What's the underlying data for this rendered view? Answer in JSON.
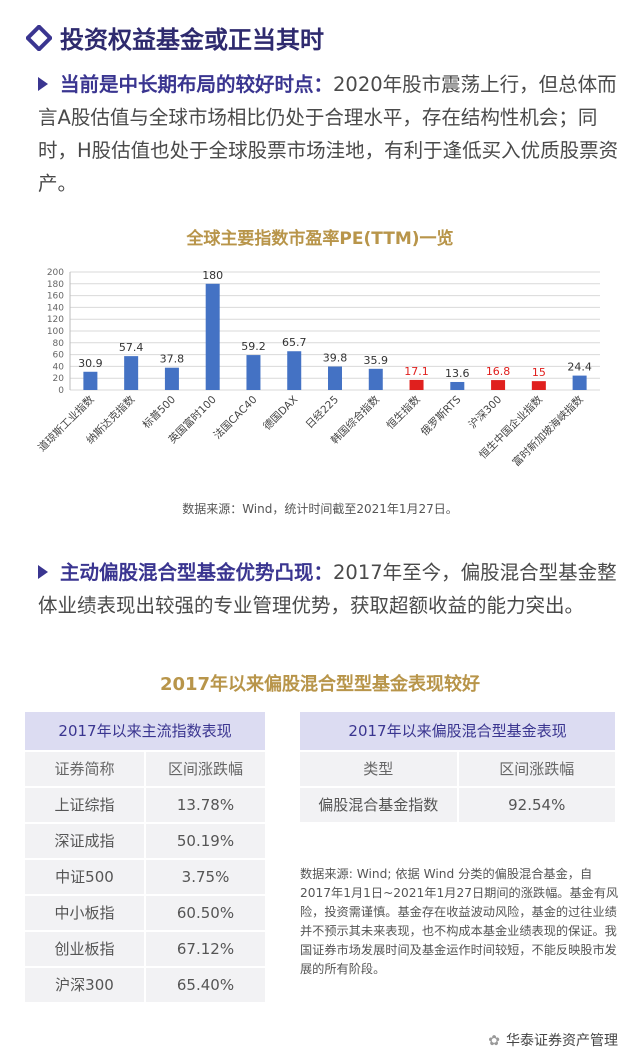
{
  "title": "投资权益基金或正当其时",
  "paragraphs": [
    {
      "lead": "当前是中长期布局的较好时点：",
      "text": "2020年股市震荡上行，但总体而言A股估值与全球市场相比仍处于合理水平，存在结构性机会；同时，H股估值也处于全球股票市场洼地，有利于逢低买入优质股票资产。"
    },
    {
      "lead": "主动偏股混合型基金优势凸现：",
      "text": "2017年至今，偏股混合型基金整体业绩表现出较强的专业管理优势，获取超额收益的能力突出。"
    }
  ],
  "chart_data": {
    "type": "bar",
    "title": "全球主要指数市盈率PE(TTM)一览",
    "categories": [
      "道琼斯工业指数",
      "纳斯达克指数",
      "标普500",
      "英国富时100",
      "法国CAC40",
      "德国DAX",
      "日经225",
      "韩国综合指数",
      "恒生指数",
      "俄罗斯RTS",
      "沪深300",
      "恒生中国企业指数",
      "富时新加坡海峡指数"
    ],
    "values": [
      30.9,
      57.4,
      37.8,
      180,
      59.2,
      65.7,
      39.8,
      35.9,
      17.1,
      13.6,
      16.8,
      15,
      24.4
    ],
    "colors": [
      "#4472c4",
      "#4472c4",
      "#4472c4",
      "#4472c4",
      "#4472c4",
      "#4472c4",
      "#4472c4",
      "#4472c4",
      "#e0201e",
      "#4472c4",
      "#e0201e",
      "#e0201e",
      "#4472c4"
    ],
    "value_label_colors": [
      "#333333",
      "#333333",
      "#333333",
      "#333333",
      "#333333",
      "#333333",
      "#333333",
      "#333333",
      "#e0201e",
      "#333333",
      "#e0201e",
      "#e0201e",
      "#333333"
    ],
    "ylim": [
      0,
      200
    ],
    "yticks": [
      0,
      20,
      40,
      60,
      80,
      100,
      120,
      140,
      160,
      180,
      200
    ],
    "grid": true,
    "source": "数据来源：Wind，统计时间截至2021年1月27日。"
  },
  "section_title": "2017年以来偏股混合型型基金表现较好",
  "tables": [
    {
      "title": "2017年以来主流指数表现",
      "columns": [
        "证券简称",
        "区间涨跌幅"
      ],
      "rows": [
        [
          "上证综指",
          "13.78%"
        ],
        [
          "深证成指",
          "50.19%"
        ],
        [
          "中证500",
          "3.75%"
        ],
        [
          "中小板指",
          "60.50%"
        ],
        [
          "创业板指",
          "67.12%"
        ],
        [
          "沪深300",
          "65.40%"
        ]
      ]
    },
    {
      "title": "2017年以来偏股混合型基金表现",
      "columns": [
        "类型",
        "区间涨跌幅"
      ],
      "rows": [
        [
          "偏股混合基金指数",
          "92.54%"
        ]
      ]
    }
  ],
  "note": "数据来源: Wind; 依据 Wind 分类的偏股混合基金，自2017年1月1日~2021年1月27日期间的涨跌幅。基金有风险，投资需谨慎。基金存在收益波动风险，基金的过往业绩并不预示其未来表现，也不构成本基金业绩表现的保证。我国证券市场发展时间及基金运作时间较短，不能反映股市发展的所有阶段。",
  "footer": "华泰证券资产管理"
}
